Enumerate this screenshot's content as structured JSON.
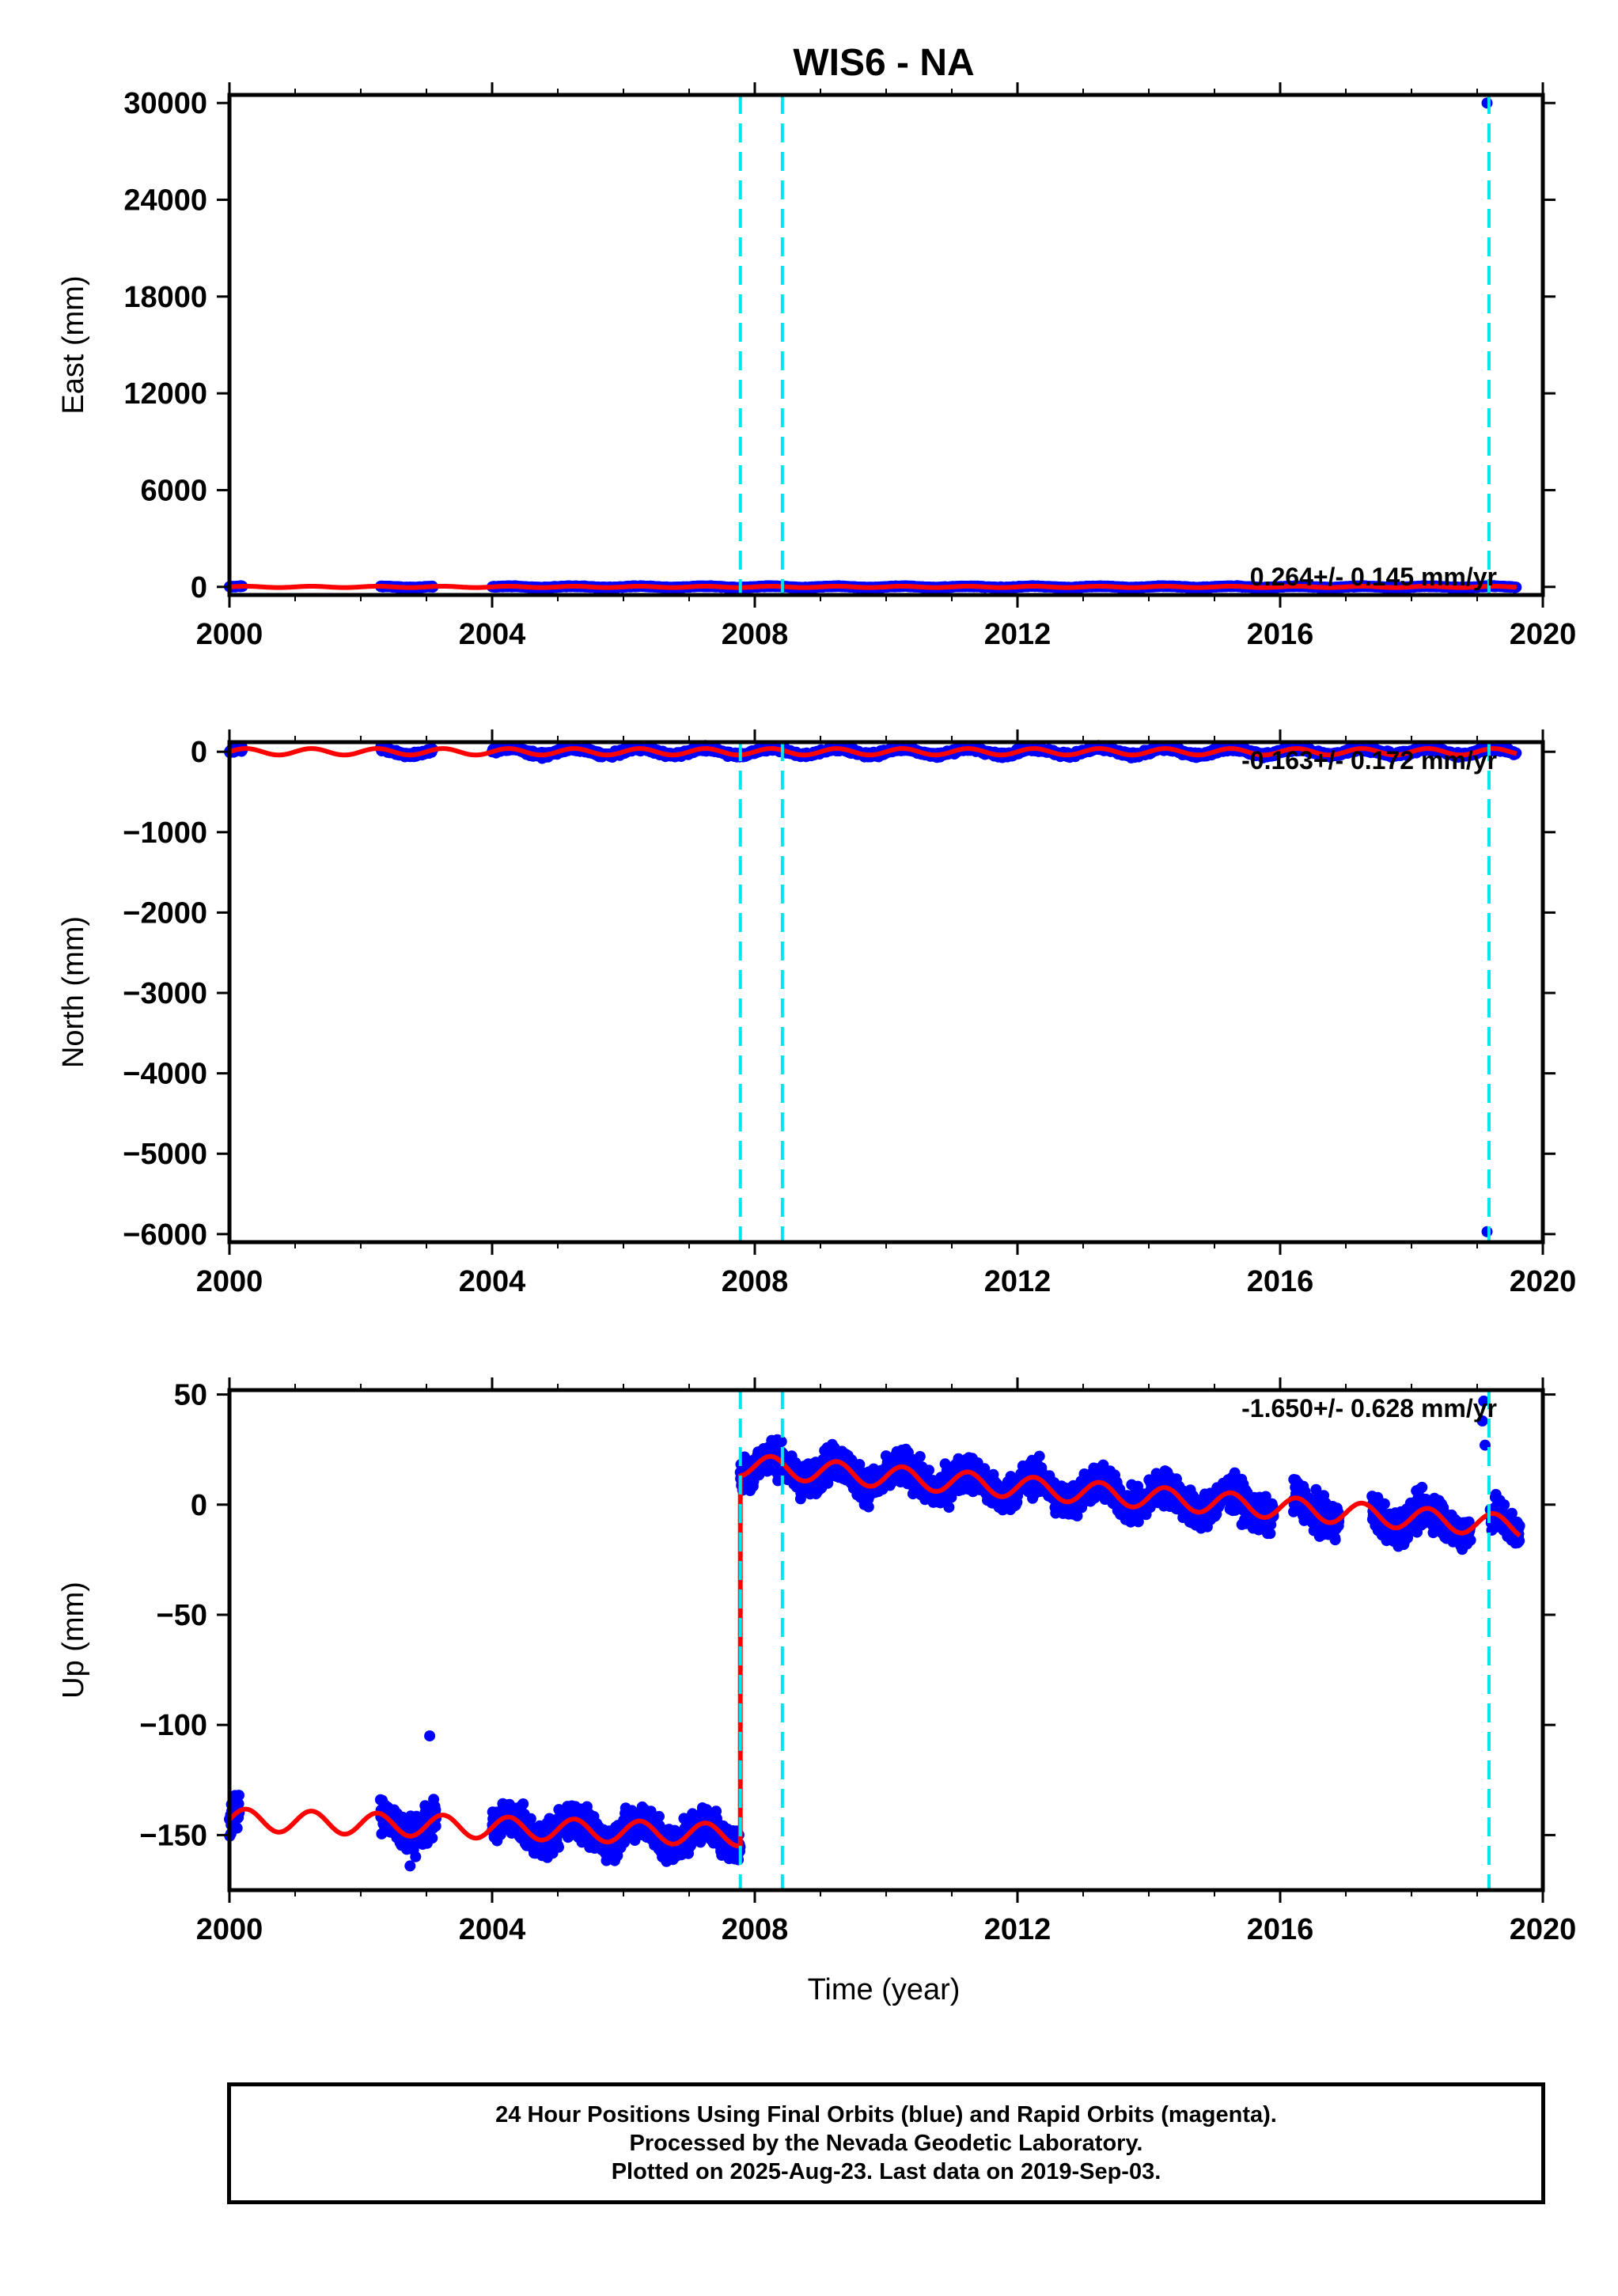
{
  "title": "WIS6 - NA",
  "colors": {
    "points": "#0000ff",
    "model": "#ff0000",
    "events": "#00e5ee",
    "frame": "#000000"
  },
  "xaxis": {
    "label": "Time (year)",
    "range": [
      2000,
      2020
    ],
    "ticks": [
      "2000",
      "2004",
      "2008",
      "2012",
      "2016",
      "2020"
    ]
  },
  "event_lines": [
    2007.78,
    2008.42,
    2019.18
  ],
  "chart_data": [
    {
      "type": "scatter",
      "name": "east",
      "ylabel": "East (mm)",
      "ylim": [
        -500,
        30500
      ],
      "yticks": [
        "0",
        "6000",
        "12000",
        "18000",
        "24000",
        "30000"
      ],
      "ytick_values": [
        0,
        6000,
        12000,
        18000,
        24000,
        30000
      ],
      "rate": "0.264+/- 0.145 mm/yr",
      "outliers": [
        {
          "x": 2019.15,
          "y": 30000
        }
      ],
      "segments": [
        [
          2000.0,
          2000.2
        ],
        [
          2002.3,
          2003.1
        ],
        [
          2004.0,
          2019.6
        ]
      ],
      "model_center": 0,
      "model_amp": 40,
      "spread": 20,
      "series": [
        {
          "values": [
            [
              2000.0,
              0
            ],
            [
              2010.0,
              0
            ],
            [
              2019.6,
              0
            ]
          ]
        }
      ]
    },
    {
      "type": "scatter",
      "name": "north",
      "ylabel": "North (mm)",
      "ylim": [
        -6100,
        120
      ],
      "yticks": [
        "0",
        "−1000",
        "−2000",
        "−3000",
        "−4000",
        "−5000",
        "−6000"
      ],
      "ytick_values": [
        0,
        -1000,
        -2000,
        -3000,
        -4000,
        -5000,
        -6000
      ],
      "rate": "-0.163+/- 0.172 mm/yr",
      "outliers": [
        {
          "x": 2019.15,
          "y": -5970
        }
      ],
      "segments": [
        [
          2000.0,
          2000.2
        ],
        [
          2002.3,
          2003.1
        ],
        [
          2004.0,
          2019.6
        ]
      ],
      "model_center": 0,
      "model_amp": 40,
      "spread": 20,
      "series": [
        {
          "values": [
            [
              2000.0,
              0
            ],
            [
              2010.0,
              0
            ],
            [
              2019.6,
              0
            ]
          ]
        }
      ]
    },
    {
      "type": "scatter",
      "name": "up",
      "ylabel": "Up (mm)",
      "ylim": [
        -175,
        52
      ],
      "yticks": [
        "50",
        "0",
        "−50",
        "−100",
        "−150"
      ],
      "ytick_values": [
        50,
        0,
        -50,
        -100,
        -150
      ],
      "rate": "-1.650+/- 0.628 mm/yr",
      "offset_epoch": 2007.78,
      "offset_mm": 165,
      "segments": [
        [
          2000.0,
          2000.15
        ],
        [
          2002.3,
          2003.15
        ],
        [
          2004.0,
          2007.78
        ],
        [
          2007.78,
          2015.9
        ],
        [
          2016.2,
          2016.9
        ],
        [
          2017.4,
          2018.9
        ],
        [
          2019.2,
          2019.65
        ]
      ],
      "model": {
        "before_offset": {
          "start": [
            2000.0,
            -143
          ],
          "end": [
            2007.78,
            -150
          ]
        },
        "after_offset": {
          "start": [
            2007.78,
            18
          ],
          "end": [
            2019.65,
            -10
          ]
        },
        "annual_amp": 5
      },
      "outliers": [
        {
          "x": 2019.1,
          "y": 47
        },
        {
          "x": 2019.08,
          "y": 38
        },
        {
          "x": 2019.12,
          "y": 27
        },
        {
          "x": 2002.75,
          "y": -164
        },
        {
          "x": 2003.05,
          "y": -105
        }
      ],
      "spread": 5.5
    }
  ],
  "footer": {
    "line1": "24 Hour Positions Using Final Orbits (blue) and Rapid Orbits (magenta).",
    "line2": "Processed by the Nevada Geodetic Laboratory.",
    "line3": "Plotted on 2025-Aug-23. Last data on 2019-Sep-03."
  }
}
